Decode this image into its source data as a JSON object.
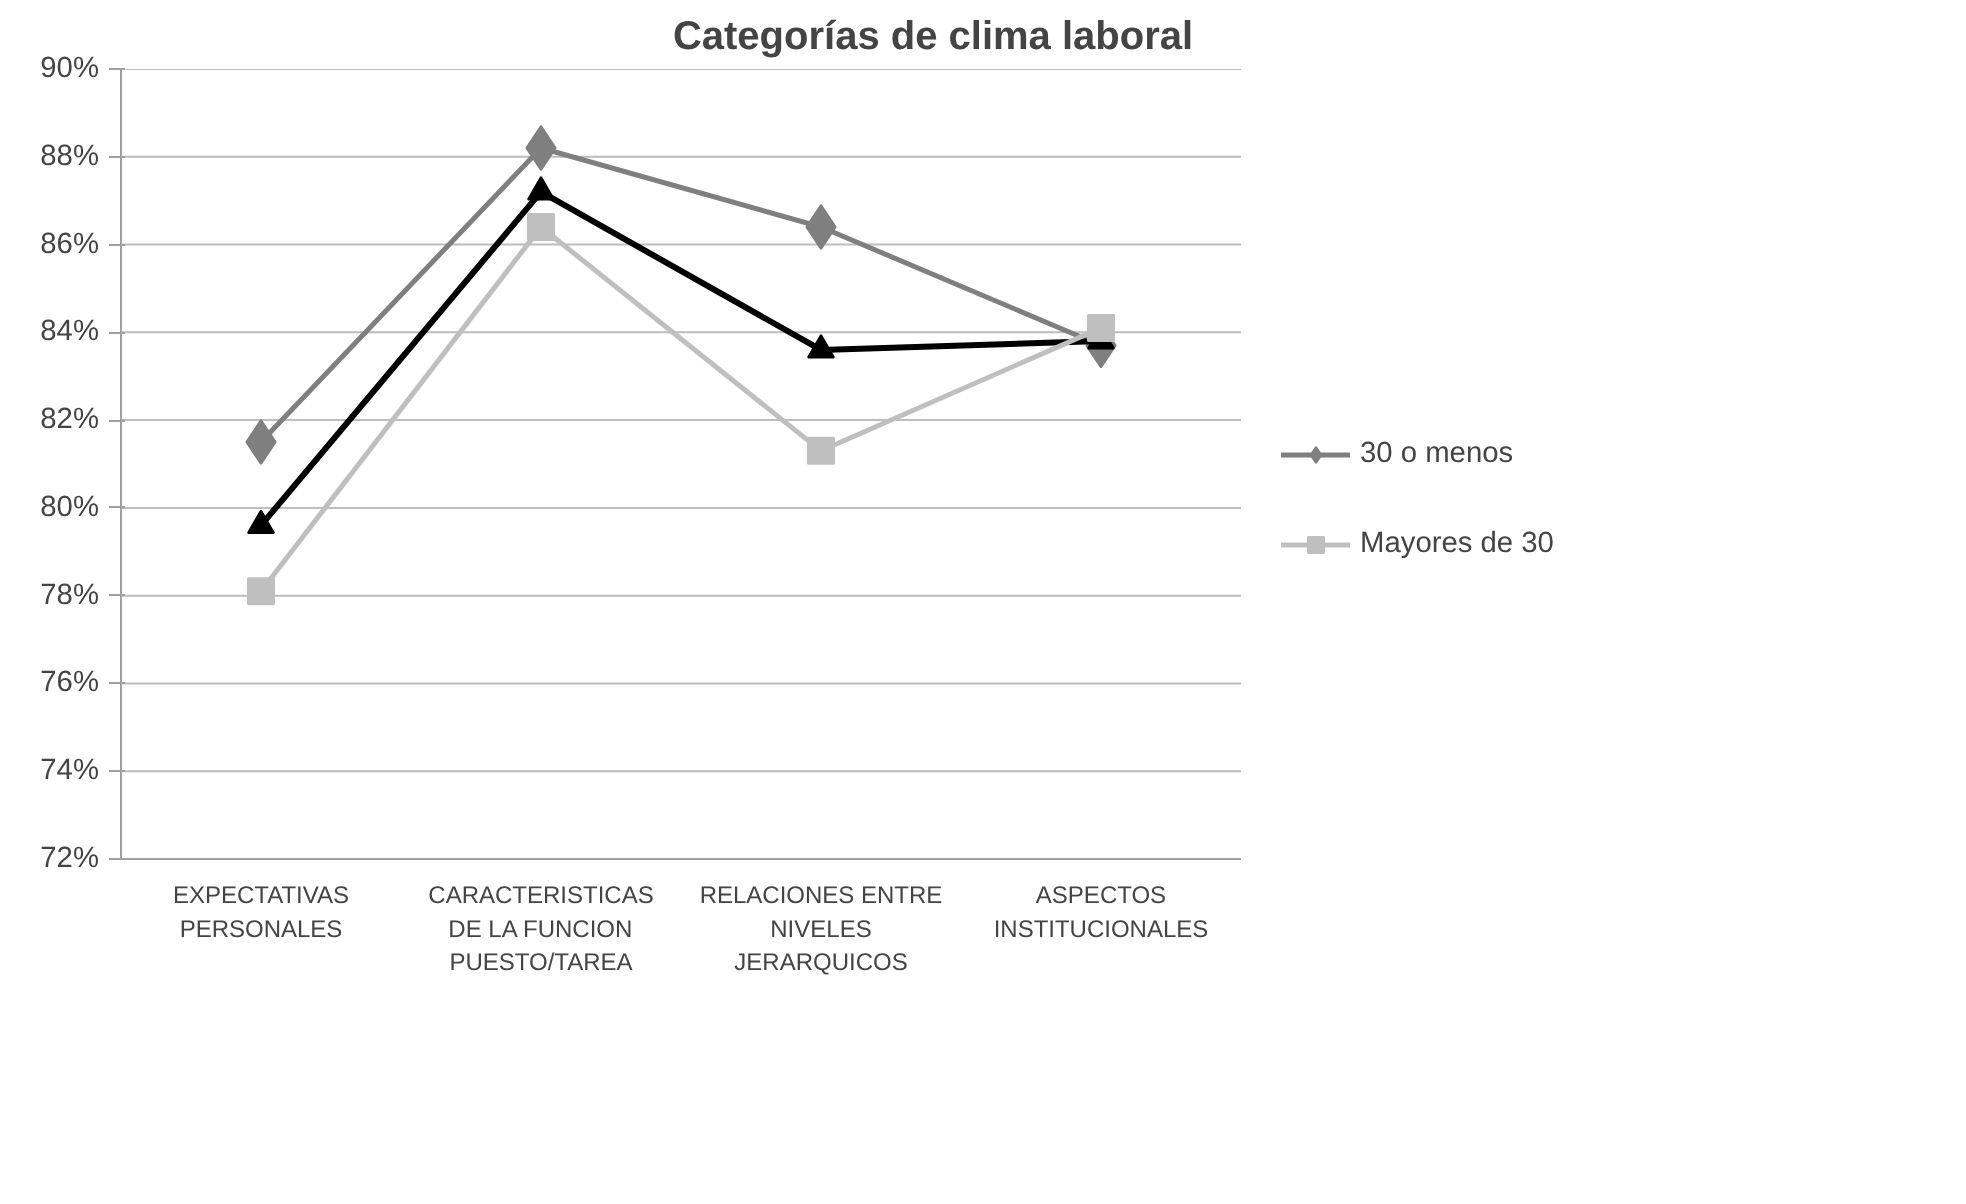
{
  "chart_data": {
    "type": "line",
    "title": "Categorías de clima laboral",
    "categories": [
      "EXPECTATIVAS PERSONALES",
      "CARACTERISTICAS DE LA FUNCION PUESTO/TAREA",
      "RELACIONES ENTRE NIVELES JERARQUICOS",
      "ASPECTOS INSTITUCIONALES"
    ],
    "series": [
      {
        "name": "30 o menos",
        "color": "#7f7f7f",
        "marker": "diamond",
        "values": [
          81.5,
          88.2,
          86.4,
          83.7
        ]
      },
      {
        "color": "#000000",
        "marker": "triangle",
        "values": [
          79.6,
          87.2,
          83.6,
          83.8
        ]
      },
      {
        "name": "Mayores de 30",
        "color": "#bfbfbf",
        "marker": "square",
        "values": [
          78.1,
          86.4,
          81.3,
          84.1
        ]
      }
    ],
    "ylim": [
      72,
      90
    ],
    "yticks": [
      {
        "value": 72,
        "label": "72%"
      },
      {
        "value": 74,
        "label": "74%"
      },
      {
        "value": 76,
        "label": "76%"
      },
      {
        "value": 78,
        "label": "78%"
      },
      {
        "value": 80,
        "label": "80%"
      },
      {
        "value": 82,
        "label": "82%"
      },
      {
        "value": 84,
        "label": "84%"
      },
      {
        "value": 86,
        "label": "86%"
      },
      {
        "value": 88,
        "label": "88%"
      },
      {
        "value": 90,
        "label": "90%"
      }
    ],
    "grid": "y",
    "legend": "right",
    "line_style": "solid"
  }
}
